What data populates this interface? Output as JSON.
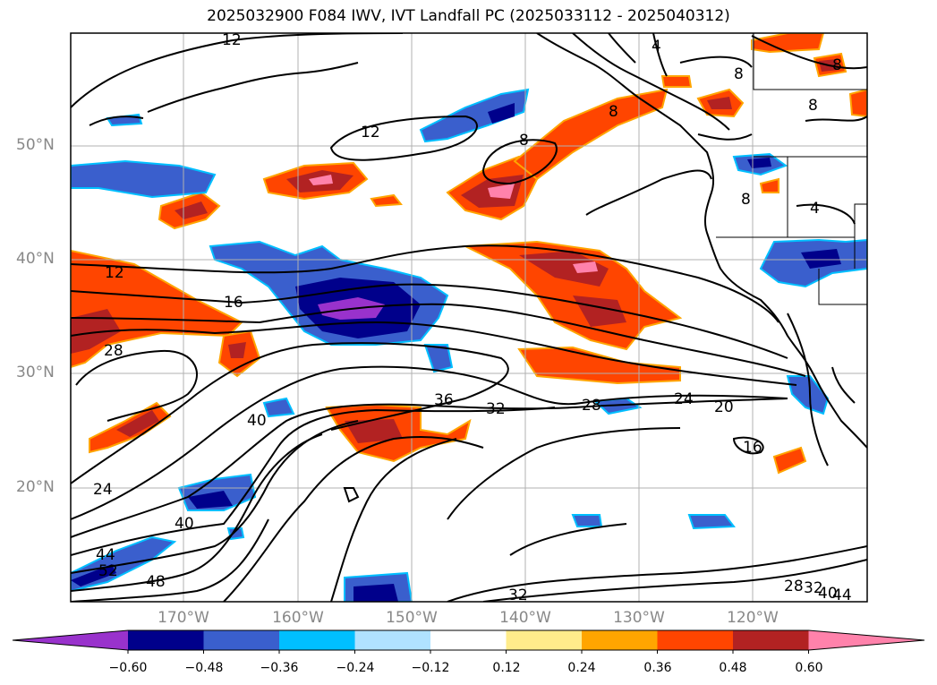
{
  "title": "2025032900 F084 IWV, IVT Landfall PC (2025033112 - 2025040312)",
  "map": {
    "lat_labels": [
      "50°N",
      "40°N",
      "30°N",
      "20°N"
    ],
    "lon_labels": [
      "170°W",
      "160°W",
      "150°W",
      "140°W",
      "130°W",
      "120°W"
    ],
    "contour_labels": [
      "12",
      "12",
      "12",
      "16",
      "28",
      "36",
      "32",
      "28",
      "24",
      "20",
      "16",
      "24",
      "40",
      "40",
      "44",
      "52",
      "48",
      "8",
      "8",
      "8",
      "4",
      "8",
      "8",
      "4",
      "8",
      "32",
      "28",
      "32",
      "40",
      "44"
    ]
  },
  "colorbar": {
    "ticks": [
      "−0.60",
      "−0.48",
      "−0.36",
      "−0.24",
      "−0.12",
      "0.12",
      "0.24",
      "0.36",
      "0.48",
      "0.60"
    ],
    "colors": [
      "#9932cc",
      "#00008b",
      "#3a5fcd",
      "#00bfff",
      "#b0e2ff",
      "#ffffff",
      "#ffec8b",
      "#ffa500",
      "#ff4500",
      "#b22222",
      "#ff82ab"
    ]
  }
}
